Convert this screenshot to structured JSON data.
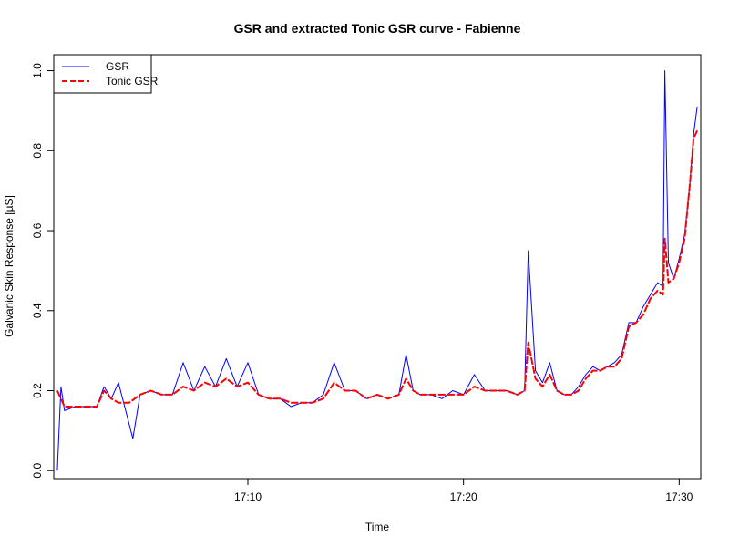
{
  "chart_data": {
    "type": "line",
    "title": "GSR and extracted Tonic GSR curve - Fabienne",
    "xlabel": "Time",
    "ylabel": "Galvanic Skin Response [µS]",
    "xlim": [
      "17:01:00",
      "17:31:00"
    ],
    "ylim": [
      -0.02,
      1.04
    ],
    "x_ticks": [
      "17:10",
      "17:20",
      "17:30"
    ],
    "y_ticks": [
      "0.0",
      "0.2",
      "0.4",
      "0.6",
      "0.8",
      "1.0"
    ],
    "legend": {
      "placement": "top-left",
      "entries": [
        "GSR",
        "Tonic GSR"
      ]
    },
    "series": [
      {
        "name": "GSR",
        "color": "#0000ff",
        "style": "solid",
        "x": [
          "17:01:10",
          "17:01:20",
          "17:01:30",
          "17:02:00",
          "17:02:30",
          "17:03:00",
          "17:03:20",
          "17:03:40",
          "17:04:00",
          "17:04:20",
          "17:04:40",
          "17:05:00",
          "17:05:30",
          "17:06:00",
          "17:06:30",
          "17:07:00",
          "17:07:30",
          "17:08:00",
          "17:08:30",
          "17:09:00",
          "17:09:30",
          "17:10:00",
          "17:10:30",
          "17:11:00",
          "17:11:30",
          "17:12:00",
          "17:12:30",
          "17:13:00",
          "17:13:30",
          "17:14:00",
          "17:14:30",
          "17:15:00",
          "17:15:30",
          "17:16:00",
          "17:16:30",
          "17:17:00",
          "17:17:20",
          "17:17:40",
          "17:18:00",
          "17:18:30",
          "17:19:00",
          "17:19:30",
          "17:20:00",
          "17:20:30",
          "17:21:00",
          "17:21:30",
          "17:22:00",
          "17:22:30",
          "17:22:50",
          "17:23:00",
          "17:23:20",
          "17:23:40",
          "17:24:00",
          "17:24:20",
          "17:24:40",
          "17:25:00",
          "17:25:20",
          "17:25:40",
          "17:26:00",
          "17:26:20",
          "17:26:40",
          "17:27:00",
          "17:27:20",
          "17:27:40",
          "17:28:00",
          "17:28:20",
          "17:28:40",
          "17:29:00",
          "17:29:15",
          "17:29:20",
          "17:29:30",
          "17:29:45",
          "17:30:00",
          "17:30:15",
          "17:30:30",
          "17:30:40",
          "17:30:50"
        ],
        "y": [
          0.0,
          0.21,
          0.15,
          0.16,
          0.16,
          0.16,
          0.21,
          0.18,
          0.22,
          0.15,
          0.08,
          0.19,
          0.2,
          0.19,
          0.19,
          0.27,
          0.2,
          0.26,
          0.21,
          0.28,
          0.21,
          0.27,
          0.19,
          0.18,
          0.18,
          0.16,
          0.17,
          0.17,
          0.19,
          0.27,
          0.2,
          0.2,
          0.18,
          0.19,
          0.18,
          0.19,
          0.29,
          0.2,
          0.19,
          0.19,
          0.18,
          0.2,
          0.19,
          0.24,
          0.2,
          0.2,
          0.2,
          0.19,
          0.2,
          0.55,
          0.25,
          0.22,
          0.27,
          0.2,
          0.19,
          0.19,
          0.21,
          0.24,
          0.26,
          0.25,
          0.26,
          0.27,
          0.29,
          0.37,
          0.37,
          0.41,
          0.44,
          0.47,
          0.46,
          1.0,
          0.52,
          0.48,
          0.53,
          0.59,
          0.72,
          0.84,
          0.91
        ]
      },
      {
        "name": "Tonic GSR",
        "color": "#ff0000",
        "style": "dashed",
        "x": [
          "17:01:10",
          "17:01:30",
          "17:02:00",
          "17:02:30",
          "17:03:00",
          "17:03:20",
          "17:03:40",
          "17:04:00",
          "17:04:30",
          "17:05:00",
          "17:05:30",
          "17:06:00",
          "17:06:30",
          "17:07:00",
          "17:07:30",
          "17:08:00",
          "17:08:30",
          "17:09:00",
          "17:09:30",
          "17:10:00",
          "17:10:30",
          "17:11:00",
          "17:11:30",
          "17:12:00",
          "17:12:30",
          "17:13:00",
          "17:13:30",
          "17:14:00",
          "17:14:30",
          "17:15:00",
          "17:15:30",
          "17:16:00",
          "17:16:30",
          "17:17:00",
          "17:17:20",
          "17:17:40",
          "17:18:00",
          "17:18:30",
          "17:19:00",
          "17:19:30",
          "17:20:00",
          "17:20:30",
          "17:21:00",
          "17:21:30",
          "17:22:00",
          "17:22:30",
          "17:22:50",
          "17:23:00",
          "17:23:20",
          "17:23:40",
          "17:24:00",
          "17:24:20",
          "17:24:40",
          "17:25:00",
          "17:25:20",
          "17:25:40",
          "17:26:00",
          "17:26:20",
          "17:26:40",
          "17:27:00",
          "17:27:20",
          "17:27:40",
          "17:28:00",
          "17:28:20",
          "17:28:40",
          "17:29:00",
          "17:29:15",
          "17:29:20",
          "17:29:30",
          "17:29:45",
          "17:30:00",
          "17:30:15",
          "17:30:30",
          "17:30:40",
          "17:30:50"
        ],
        "y": [
          0.2,
          0.16,
          0.16,
          0.16,
          0.16,
          0.2,
          0.18,
          0.17,
          0.17,
          0.19,
          0.2,
          0.19,
          0.19,
          0.21,
          0.2,
          0.22,
          0.21,
          0.23,
          0.21,
          0.22,
          0.19,
          0.18,
          0.18,
          0.17,
          0.17,
          0.17,
          0.18,
          0.22,
          0.2,
          0.2,
          0.18,
          0.19,
          0.18,
          0.19,
          0.23,
          0.2,
          0.19,
          0.19,
          0.19,
          0.19,
          0.19,
          0.21,
          0.2,
          0.2,
          0.2,
          0.19,
          0.2,
          0.32,
          0.23,
          0.21,
          0.24,
          0.2,
          0.19,
          0.19,
          0.2,
          0.23,
          0.25,
          0.25,
          0.26,
          0.26,
          0.28,
          0.36,
          0.37,
          0.39,
          0.43,
          0.45,
          0.44,
          0.58,
          0.47,
          0.48,
          0.52,
          0.58,
          0.72,
          0.83,
          0.85
        ]
      }
    ]
  }
}
